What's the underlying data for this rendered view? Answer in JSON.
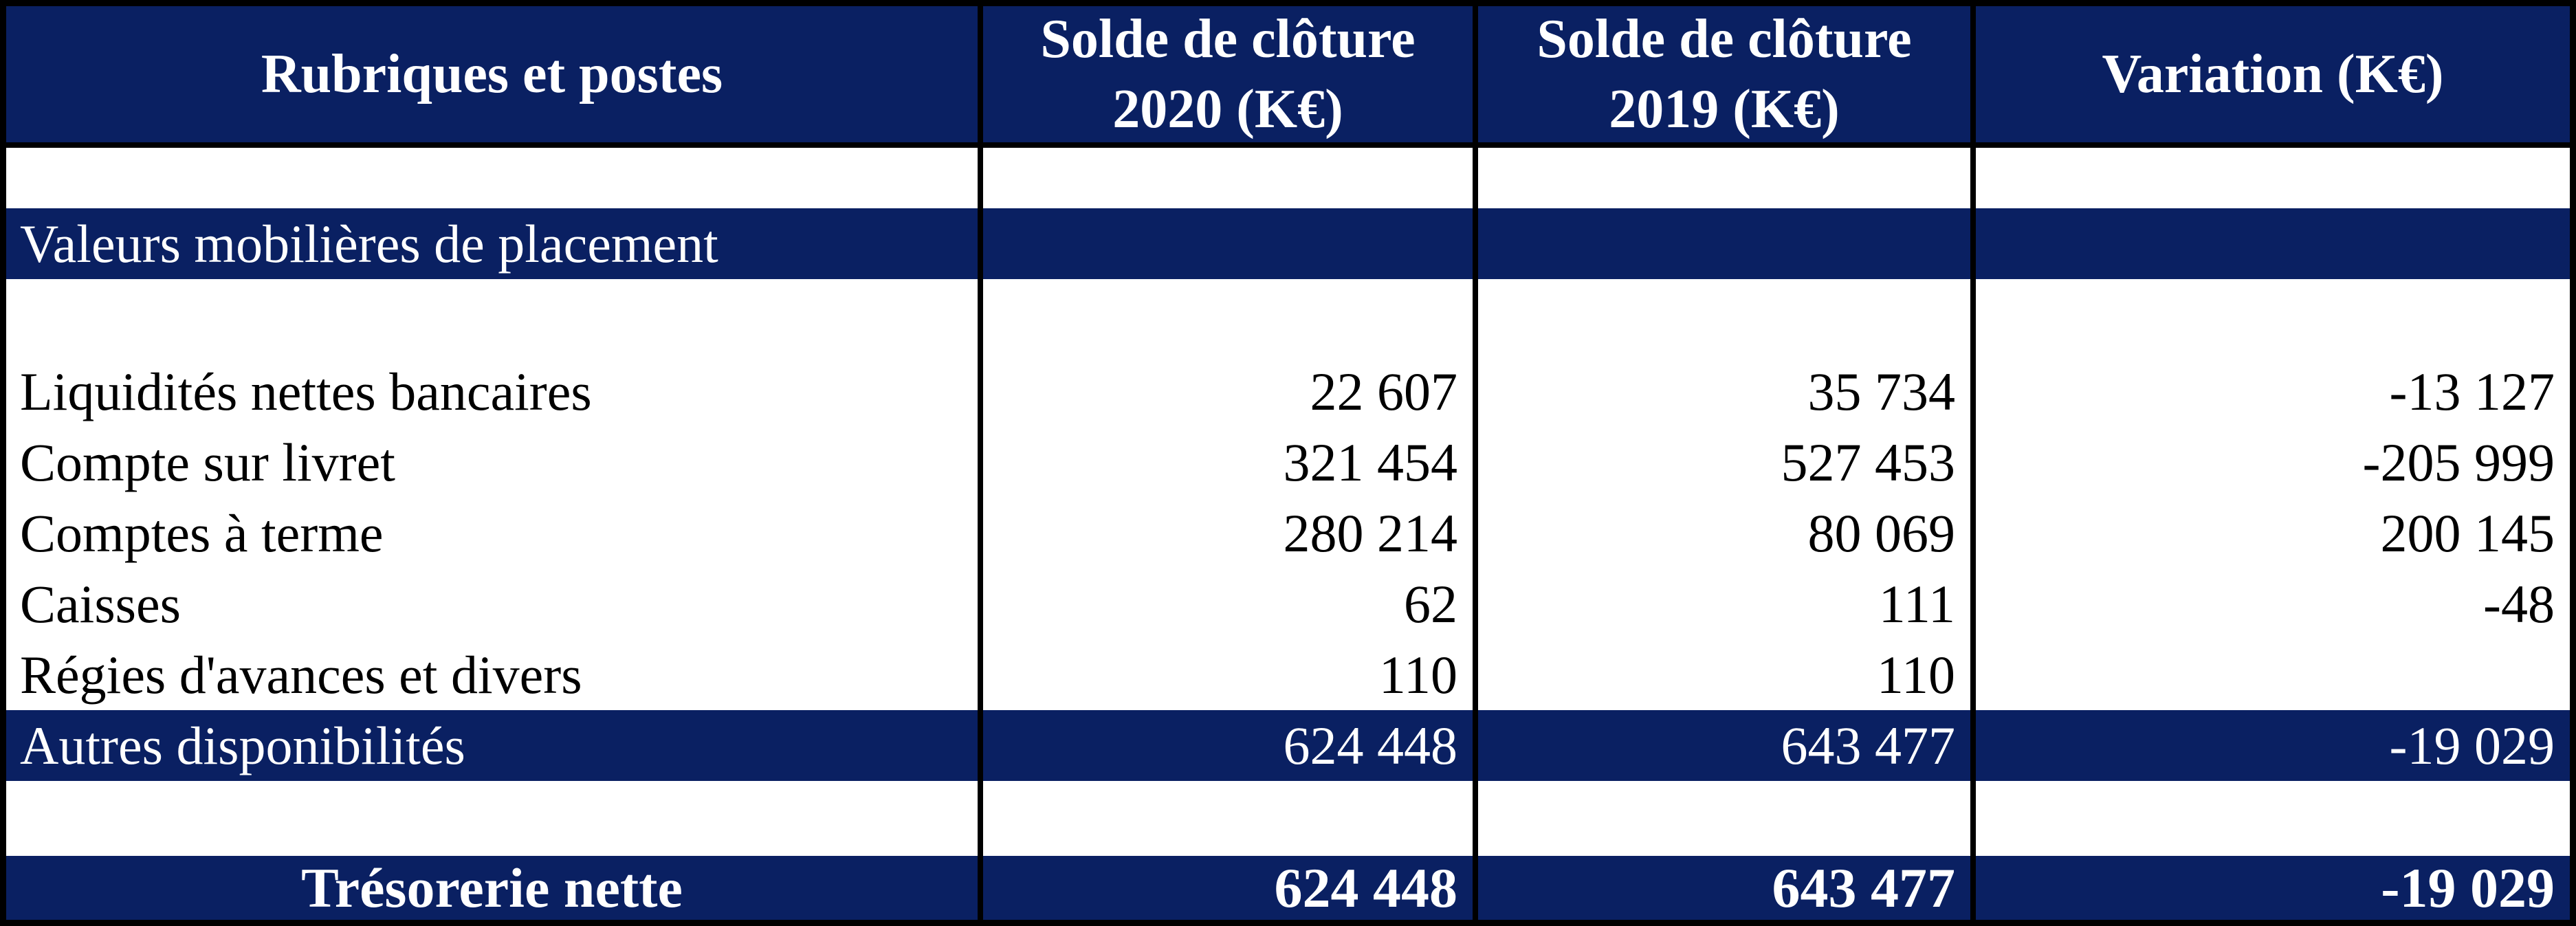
{
  "colors": {
    "highlight_bg": "#0a2062",
    "border": "#000000",
    "text_on_highlight": "#ffffff",
    "text": "#000000"
  },
  "table": {
    "columns": [
      {
        "id": "label",
        "header": "Rubriques et postes"
      },
      {
        "id": "solde_2020",
        "header": "Solde de clôture\n2020 (K€)"
      },
      {
        "id": "solde_2019",
        "header": "Solde de clôture\n2019 (K€)"
      },
      {
        "id": "variation",
        "header": "Variation (K€)"
      }
    ],
    "rows": [
      {
        "type": "spacer-small",
        "label": "",
        "solde_2020": "",
        "solde_2019": "",
        "variation": ""
      },
      {
        "type": "section",
        "label": "Valeurs mobilières de placement",
        "solde_2020": "",
        "solde_2019": "",
        "variation": ""
      },
      {
        "type": "spacer",
        "label": "",
        "solde_2020": "",
        "solde_2019": "",
        "variation": ""
      },
      {
        "type": "data",
        "label": "Liquidités nettes bancaires",
        "solde_2020": "22 607",
        "solde_2019": "35 734",
        "variation": "-13 127"
      },
      {
        "type": "data",
        "label": "Compte sur livret",
        "solde_2020": "321 454",
        "solde_2019": "527 453",
        "variation": "-205 999"
      },
      {
        "type": "data",
        "label": "Comptes à terme",
        "solde_2020": "280 214",
        "solde_2019": "80 069",
        "variation": "200 145"
      },
      {
        "type": "data",
        "label": "Caisses",
        "solde_2020": "62",
        "solde_2019": "111",
        "variation": "-48"
      },
      {
        "type": "data",
        "label": "Régies d'avances et divers",
        "solde_2020": "110",
        "solde_2019": "110",
        "variation": ""
      },
      {
        "type": "section",
        "label": "Autres disponibilités",
        "solde_2020": "624 448",
        "solde_2019": "643 477",
        "variation": "-19 029"
      },
      {
        "type": "spacer2",
        "label": "",
        "solde_2020": "",
        "solde_2019": "",
        "variation": ""
      },
      {
        "type": "total",
        "label": "Trésorerie nette",
        "solde_2020": "624 448",
        "solde_2019": "643 477",
        "variation": "-19 029"
      }
    ]
  }
}
